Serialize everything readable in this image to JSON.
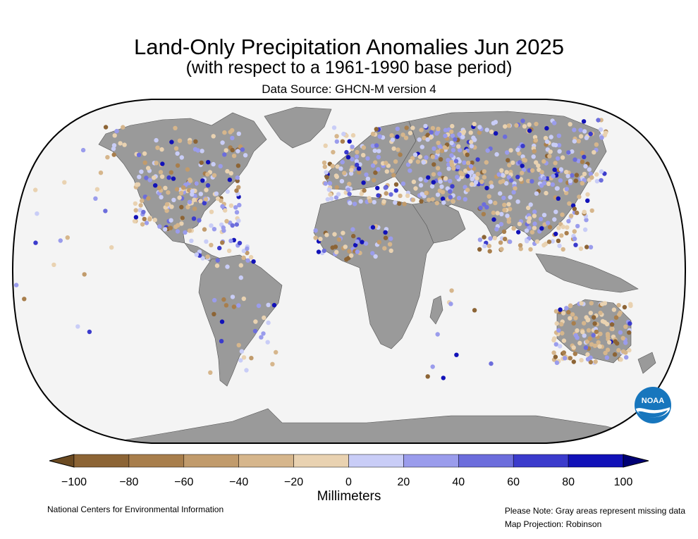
{
  "title": "Land-Only Precipitation Anomalies Jun 2025",
  "subtitle": "(with respect to a 1961-1990 base period)",
  "source": "Data Source: GHCN-M version 4",
  "colorbar": {
    "ticks": [
      "−100",
      "−80",
      "−60",
      "−40",
      "−20",
      "0",
      "20",
      "40",
      "60",
      "80",
      "100"
    ],
    "values": [
      -100,
      -80,
      -60,
      -40,
      -20,
      0,
      20,
      40,
      60,
      80,
      100
    ],
    "colors": [
      "#8c6435",
      "#a87e4c",
      "#c19b6c",
      "#d6b68c",
      "#e9d2b1",
      "#c9cdf7",
      "#9a9cec",
      "#6c6ddc",
      "#3b3bcc",
      "#1111b8"
    ],
    "under_color": "#6b4a22",
    "over_color": "#000075",
    "units": "Millimeters"
  },
  "colors": {
    "ocean": "#f4f4f4",
    "land": "#9a9a9a",
    "outline": "#000000"
  },
  "logo": {
    "text": "NOAA",
    "color": "#1776bd"
  },
  "footer": {
    "credit": "National Centers for Environmental Information",
    "note_line1": "Please Note: Gray areas represent missing data",
    "note_line2": "Map Projection: Robinson"
  }
}
